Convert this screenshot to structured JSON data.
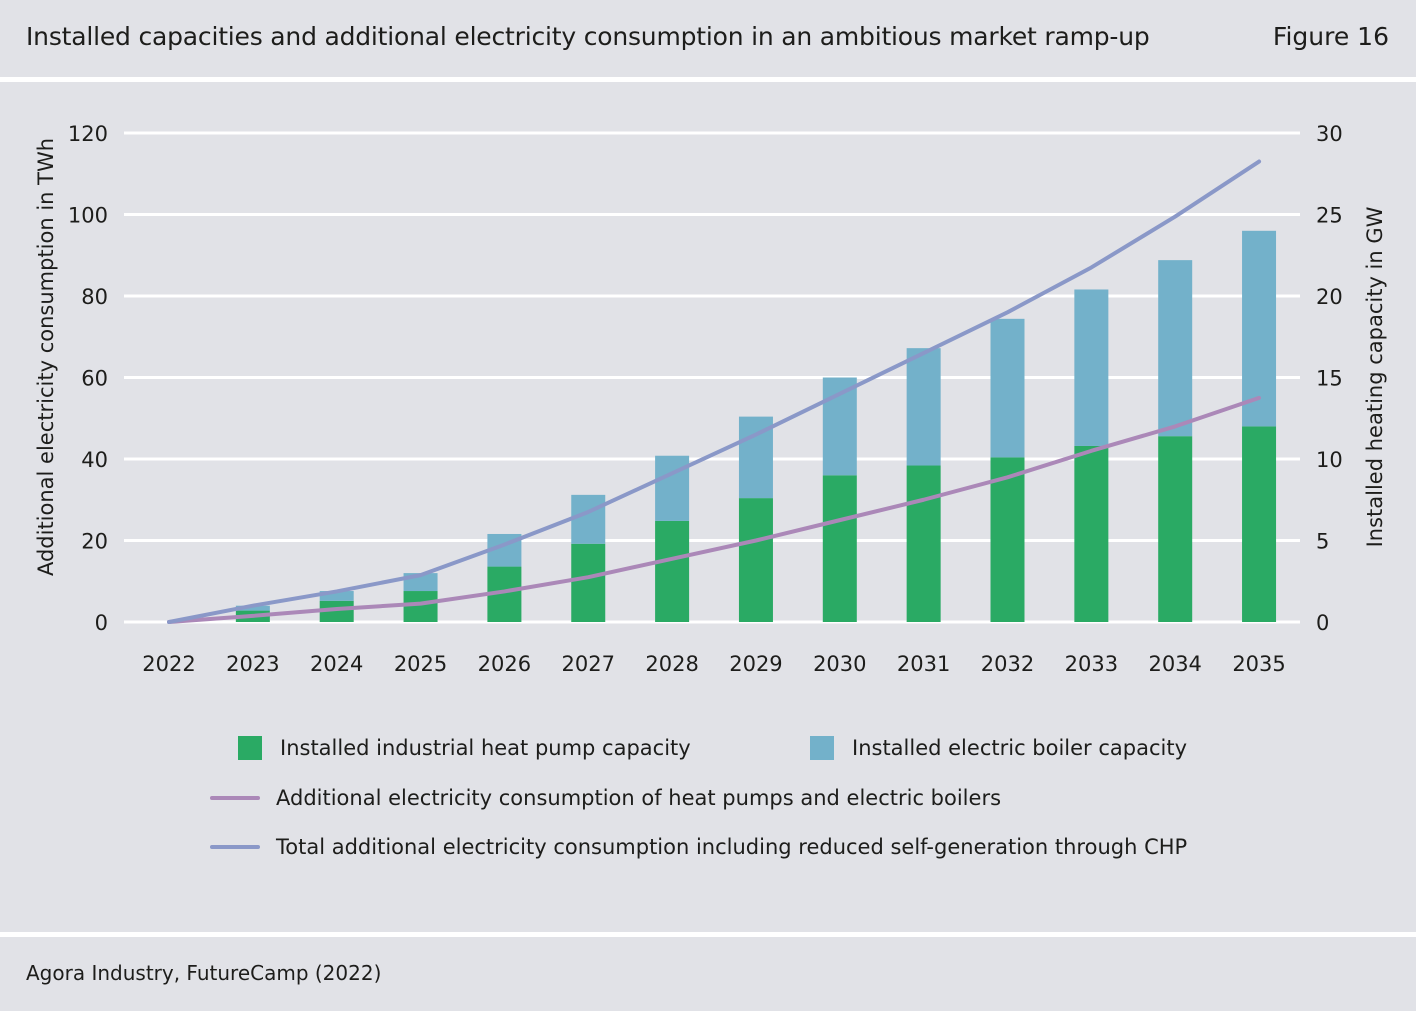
{
  "header": {
    "title": "Installed capacities and additional electricity consumption in an ambitious market ramp-up",
    "figure_label": "Figure 16"
  },
  "source": "Agora Industry, FutureCamp (2022)",
  "colors": {
    "heat_pump": "#2aaa64",
    "electric_boiler": "#73b1ca",
    "hp_eb_line": "#ab88b8",
    "total_line": "#8a98c8",
    "gridline": "#ffffff",
    "background": "#e1e2e7"
  },
  "chart_data": {
    "type": "bar",
    "stacked": true,
    "categories": [
      "2022",
      "2023",
      "2024",
      "2025",
      "2026",
      "2027",
      "2028",
      "2029",
      "2030",
      "2031",
      "2032",
      "2033",
      "2034",
      "2035"
    ],
    "ylabel_left": "Additional electricity consumption in TWh",
    "ylabel_right": "Installed heating capacity in GW",
    "ylim_left": [
      0,
      120
    ],
    "ylim_right": [
      0,
      30
    ],
    "yticks_left": [
      0,
      20,
      40,
      60,
      80,
      100,
      120
    ],
    "yticks_right": [
      0,
      5,
      10,
      15,
      20,
      25,
      30
    ],
    "grid": true,
    "bar_series": [
      {
        "name": "Installed industrial heat pump capacity",
        "axis": "right",
        "values": [
          0,
          0.7,
          1.3,
          1.9,
          3.4,
          4.8,
          6.2,
          7.6,
          9.0,
          9.6,
          10.1,
          10.8,
          11.4,
          12.0
        ]
      },
      {
        "name": "Installed electric boiler capacity",
        "axis": "right",
        "values": [
          0,
          0.3,
          0.6,
          1.1,
          2.0,
          3.0,
          4.0,
          5.0,
          6.0,
          7.2,
          8.5,
          9.6,
          10.8,
          12.0
        ]
      }
    ],
    "line_series": [
      {
        "name": "Additional electricity consumption of heat pumps and electric boilers",
        "axis": "left",
        "values": [
          0,
          1.5,
          3.2,
          4.5,
          7.5,
          11,
          15.5,
          20,
          25,
          30,
          35.5,
          42,
          48,
          55
        ]
      },
      {
        "name": "Total additional electricity consumption including reduced self-generation through CHP",
        "axis": "left",
        "values": [
          0,
          4,
          7.5,
          11.5,
          19,
          27,
          36.5,
          46,
          56,
          66,
          76,
          87,
          99.5,
          113
        ]
      }
    ],
    "legend_position": "bottom"
  }
}
